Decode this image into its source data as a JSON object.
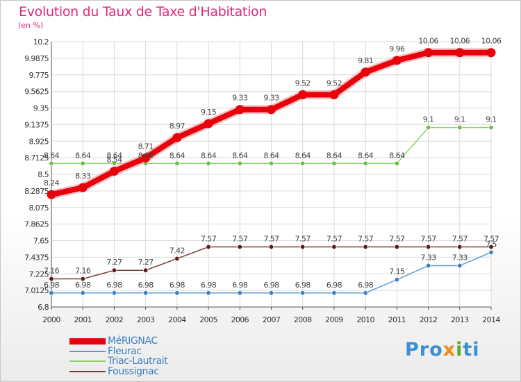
{
  "header": {
    "title": "Evolution du Taux de Taxe d'Habitation",
    "subtitle": "(en %)"
  },
  "logo": {
    "parts": [
      "Pro",
      "x",
      "i",
      "ti"
    ],
    "colors": [
      "#3a8fd4",
      "#f08a1c",
      "#5aa832",
      "#3a8fd4"
    ]
  },
  "chart_data": {
    "type": "line",
    "title": "Evolution du Taux de Taxe d'Habitation",
    "subtitle": "(en %)",
    "x": [
      "2000",
      "2001",
      "2002",
      "2003",
      "2004",
      "2005",
      "2006",
      "2007",
      "2008",
      "2009",
      "2010",
      "2011",
      "2012",
      "2013",
      "2014"
    ],
    "ylim": [
      6.8,
      10.2
    ],
    "yticks": [
      "10.2",
      "9.9875",
      "9.775",
      "9.5625",
      "9.35",
      "9.1375",
      "8.925",
      "8.7125",
      "8.5",
      "8.2875",
      "8.075",
      "7.8625",
      "7.65",
      "7.4375",
      "7.225",
      "7.0125",
      "6.8"
    ],
    "grid": true,
    "legend_position": "bottom-left",
    "series": [
      {
        "name": "MéRIGNAC",
        "color": "#e8000b",
        "style": "thick",
        "values": [
          8.24,
          8.33,
          8.54,
          8.71,
          8.97,
          9.15,
          9.33,
          9.33,
          9.52,
          9.52,
          9.81,
          9.96,
          10.06,
          10.06,
          10.06
        ],
        "labels": [
          "8.24",
          "8.33",
          "8.54",
          "8.71",
          "8.97",
          "9.15",
          "9.33",
          "9.33",
          "9.52",
          "9.52",
          "9.81",
          "9.96",
          "10.06",
          "10.06",
          "10.06"
        ]
      },
      {
        "name": "Fleurac",
        "color": "#5b9bd5",
        "marker": "#3d7fc0",
        "values": [
          6.98,
          6.98,
          6.98,
          6.98,
          6.98,
          6.98,
          6.98,
          6.98,
          6.98,
          6.98,
          6.98,
          7.15,
          7.33,
          7.33,
          7.5
        ],
        "labels": [
          "6.98",
          "6.98",
          "6.98",
          "6.98",
          "6.98",
          "6.98",
          "6.98",
          "6.98",
          "6.98",
          "6.98",
          "6.98",
          "7.15",
          "7.33",
          "7.33",
          "7.5"
        ]
      },
      {
        "name": "Triac-Lautrait",
        "color": "#8fd16a",
        "marker": "#6cc040",
        "values": [
          8.64,
          8.64,
          8.64,
          8.64,
          8.64,
          8.64,
          8.64,
          8.64,
          8.64,
          8.64,
          8.64,
          8.64,
          9.1,
          9.1,
          9.1
        ],
        "labels": [
          "8.64",
          "8.64",
          "8.64",
          "8.64",
          "8.64",
          "8.64",
          "8.64",
          "8.64",
          "8.64",
          "8.64",
          "8.64",
          "8.64",
          "9.1",
          "9.1",
          "9.1"
        ]
      },
      {
        "name": "Foussignac",
        "color": "#7b3a3a",
        "marker": "#5c1a1a",
        "values": [
          7.16,
          7.16,
          7.27,
          7.27,
          7.42,
          7.57,
          7.57,
          7.57,
          7.57,
          7.57,
          7.57,
          7.57,
          7.57,
          7.57,
          7.57
        ],
        "labels": [
          "7.16",
          "7.16",
          "7.27",
          "7.27",
          "7.42",
          "7.57",
          "7.57",
          "7.57",
          "7.57",
          "7.57",
          "7.57",
          "7.57",
          "7.57",
          "7.57",
          "7.57"
        ]
      }
    ]
  }
}
